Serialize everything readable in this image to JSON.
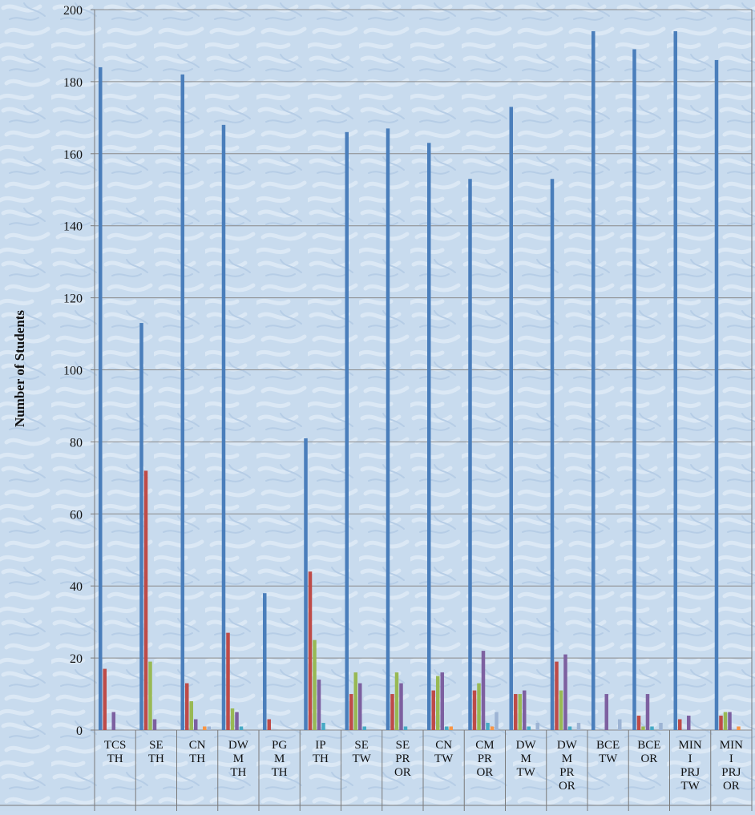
{
  "chart_data": {
    "type": "bar",
    "ylabel": "Number of Students",
    "ylim": [
      0,
      200
    ],
    "yticks": [
      0,
      20,
      40,
      60,
      80,
      100,
      120,
      140,
      160,
      180,
      200
    ],
    "grid": true,
    "categories": [
      [
        "TCS",
        "TH"
      ],
      [
        "SE",
        "TH"
      ],
      [
        "CN",
        "TH"
      ],
      [
        "DW",
        "M",
        "TH"
      ],
      [
        "PG",
        "M",
        "TH"
      ],
      [
        "IP",
        "TH"
      ],
      [
        "SE",
        "TW"
      ],
      [
        "SE",
        "PR",
        "OR"
      ],
      [
        "CN",
        "TW"
      ],
      [
        "CM",
        "PR",
        "OR"
      ],
      [
        "DW",
        "M",
        "TW"
      ],
      [
        "DW",
        "M",
        "PR",
        "OR"
      ],
      [
        "BCE",
        "TW"
      ],
      [
        "BCE",
        "OR"
      ],
      [
        "MIN",
        "I",
        "PRJ",
        "TW"
      ],
      [
        "MIN",
        "I",
        "PRJ",
        "OR"
      ]
    ],
    "series": [
      {
        "color": "#4a7ebb",
        "values": [
          184,
          113,
          182,
          168,
          38,
          81,
          166,
          167,
          163,
          153,
          173,
          153,
          194,
          189,
          194,
          186
        ]
      },
      {
        "color": "#be4b48",
        "values": [
          17,
          72,
          13,
          27,
          3,
          44,
          10,
          10,
          11,
          11,
          10,
          19,
          0,
          4,
          3,
          4
        ]
      },
      {
        "color": "#98b954",
        "values": [
          0,
          19,
          8,
          6,
          0,
          25,
          16,
          16,
          15,
          13,
          10,
          11,
          0,
          1,
          0,
          5
        ]
      },
      {
        "color": "#7d60a0",
        "values": [
          5,
          3,
          3,
          5,
          0,
          14,
          13,
          13,
          16,
          22,
          11,
          21,
          10,
          10,
          4,
          5
        ]
      },
      {
        "color": "#46aac5",
        "values": [
          0,
          0,
          0,
          1,
          0,
          2,
          1,
          1,
          1,
          2,
          1,
          1,
          0,
          1,
          0,
          0
        ]
      },
      {
        "color": "#f79646",
        "values": [
          0,
          0,
          1,
          0,
          0,
          0,
          0,
          0,
          1,
          1,
          0,
          0,
          0,
          0,
          0,
          1
        ]
      },
      {
        "color": "#9db4d4",
        "values": [
          0,
          0,
          1,
          0,
          0,
          0,
          0,
          0,
          0,
          5,
          2,
          2,
          3,
          2,
          0,
          0
        ]
      }
    ]
  }
}
